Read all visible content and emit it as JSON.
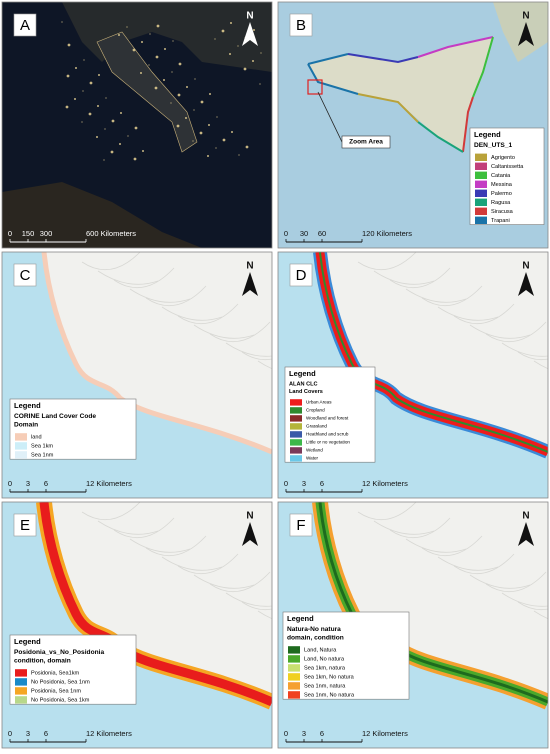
{
  "panels": [
    {
      "label": "A",
      "north": "N",
      "scale": [
        "0",
        "150",
        "300",
        "600 Kilometers"
      ]
    },
    {
      "label": "B",
      "north": "N",
      "annotation": "Zoom Area",
      "legend": {
        "title": "Legend",
        "subtitle": [
          "DEN_UTS_1"
        ],
        "items": [
          {
            "label": "Agrigento",
            "color": "#b9a23a"
          },
          {
            "label": "Caltanissetta",
            "color": "#c2407a"
          },
          {
            "label": "Catania",
            "color": "#3dbf3d"
          },
          {
            "label": "Messina",
            "color": "#c43cc4"
          },
          {
            "label": "Palermo",
            "color": "#3a3ab5"
          },
          {
            "label": "Ragusa",
            "color": "#1aa37a"
          },
          {
            "label": "Siracusa",
            "color": "#d23a3a"
          },
          {
            "label": "Trapani",
            "color": "#1a73a8"
          }
        ]
      },
      "scale": [
        "0",
        "30",
        "60",
        "120 Kilometers"
      ]
    },
    {
      "label": "C",
      "north": "N",
      "legend": {
        "title": "Legend",
        "subtitle": [
          "CORINE Land Cover Code",
          "Domain"
        ],
        "items": [
          {
            "label": "land",
            "color": "#f6cdb7"
          },
          {
            "label": "Sea 1km",
            "color": "#cdeef8"
          },
          {
            "label": "Sea 1nm",
            "color": "#e0f0f8"
          }
        ]
      },
      "scale": [
        "0",
        "3",
        "6",
        "12 Kilometers"
      ]
    },
    {
      "label": "D",
      "north": "N",
      "legend": {
        "title": "Legend",
        "subtitle": [
          "ALAN CLC",
          "Land Covers"
        ],
        "items": [
          {
            "label": "Urban Areas",
            "color": "#ee1c1c"
          },
          {
            "label": "Cropland",
            "color": "#2f8a2f"
          },
          {
            "label": "Woodland and forest",
            "color": "#8a2a2a"
          },
          {
            "label": "Grassland",
            "color": "#b4b43a"
          },
          {
            "label": "Heathland and scrub",
            "color": "#3a5aa8"
          },
          {
            "label": "Little or no vegetation",
            "color": "#3cb84a"
          },
          {
            "label": "Wetland",
            "color": "#7a3a5a"
          },
          {
            "label": "Water",
            "color": "#6ac8e8"
          }
        ]
      },
      "scale": [
        "0",
        "3",
        "6",
        "12 Kilometers"
      ]
    },
    {
      "label": "E",
      "north": "N",
      "legend": {
        "title": "Legend",
        "subtitle": [
          "Posidonia_vs_No_Posidonia",
          "condition, domain"
        ],
        "items": [
          {
            "label": "Posidonia, Sea1km",
            "color": "#e81c1c"
          },
          {
            "label": "No Posidonia, Sea 1nm",
            "color": "#1a8ac8"
          },
          {
            "label": "Posidonia, Sea 1nm",
            "color": "#f5a623"
          },
          {
            "label": "No Posidonia, Sea 1km",
            "color": "#b8d88a"
          }
        ]
      },
      "scale": [
        "0",
        "3",
        "6",
        "12 Kilometers"
      ]
    },
    {
      "label": "F",
      "north": "N",
      "legend": {
        "title": "Legend",
        "subtitle": [
          "Natura-No natura",
          "domain,  condition"
        ],
        "items": [
          {
            "label": "Land, Natura",
            "color": "#1e6a1e"
          },
          {
            "label": "Land, No natura",
            "color": "#4aa82a"
          },
          {
            "label": "Sea 1km, natura",
            "color": "#c8e070"
          },
          {
            "label": "Sea 1km, No natura",
            "color": "#f0d020"
          },
          {
            "label": "Sea 1nm, natura",
            "color": "#f5a030"
          },
          {
            "label": "Sea 1nm, No natura",
            "color": "#f04020"
          }
        ]
      },
      "scale": [
        "0",
        "3",
        "6",
        "12 Kilometers"
      ]
    }
  ]
}
